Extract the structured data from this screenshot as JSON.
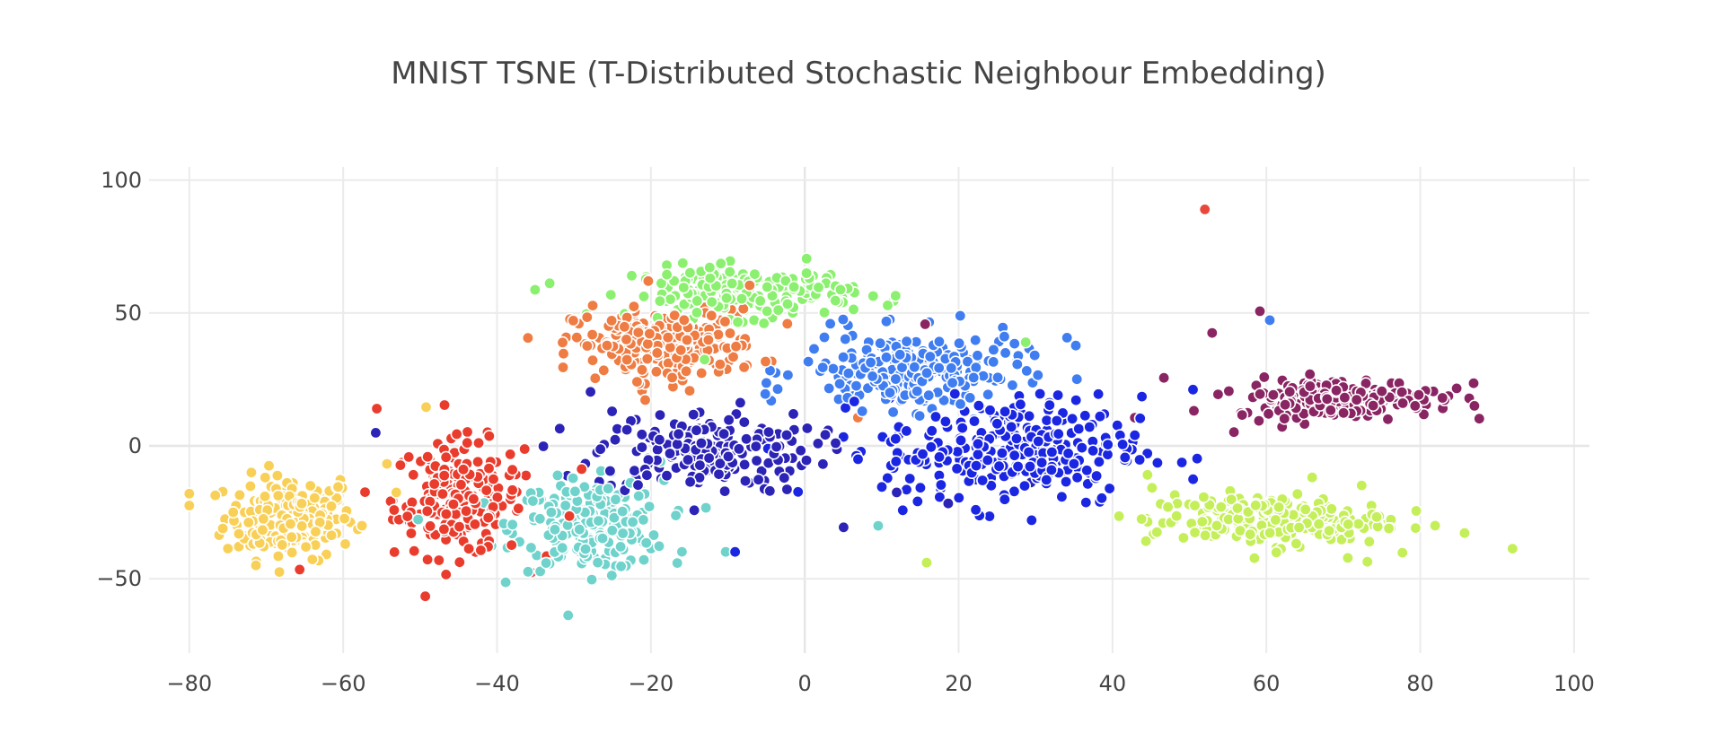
{
  "chart_data": {
    "type": "scatter",
    "title": "MNIST TSNE (T-Distributed Stochastic Neighbour Embedding)",
    "xlabel": "",
    "ylabel": "",
    "xlim": [
      -85,
      102
    ],
    "ylim": [
      -78,
      105
    ],
    "x_ticks": [
      -80,
      -60,
      -40,
      -20,
      0,
      20,
      40,
      60,
      80,
      100
    ],
    "y_ticks": [
      -50,
      0,
      50,
      100
    ],
    "x_tick_labels": [
      "−80",
      "−60",
      "−40",
      "−20",
      "0",
      "20",
      "40",
      "60",
      "80",
      "100"
    ],
    "y_tick_labels": [
      "−50",
      "0",
      "50",
      "100"
    ],
    "grid": true,
    "legend": "none",
    "marker_outline": "#ffffff",
    "clusters": [
      {
        "color": "#f9d057",
        "center": [
          -67,
          -27
        ],
        "spread": [
          7,
          13
        ],
        "count": 190
      },
      {
        "color": "#ea3c2d",
        "center": [
          -45,
          -20
        ],
        "spread": [
          7,
          18
        ],
        "count": 200
      },
      {
        "color": "#6fd3cc",
        "center": [
          -28,
          -30
        ],
        "spread": [
          8,
          14
        ],
        "count": 220
      },
      {
        "color": "#2c23b7",
        "center": [
          -13,
          -2
        ],
        "spread": [
          12,
          13
        ],
        "count": 190
      },
      {
        "color": "#ee7c43",
        "center": [
          -18,
          38
        ],
        "spread": [
          10,
          11
        ],
        "count": 230
      },
      {
        "color": "#8bf06f",
        "center": [
          -8,
          58
        ],
        "spread": [
          12,
          8
        ],
        "count": 190
      },
      {
        "color": "#3f7df1",
        "center": [
          14,
          28
        ],
        "spread": [
          12,
          12
        ],
        "count": 230
      },
      {
        "color": "#1b26e3",
        "center": [
          27,
          -2
        ],
        "spread": [
          14,
          17
        ],
        "count": 280
      },
      {
        "color": "#8a2563",
        "center": [
          69,
          18
        ],
        "spread": [
          11,
          6
        ],
        "count": 210
      },
      {
        "color": "#c4ef59",
        "center": [
          60,
          -28
        ],
        "spread": [
          13,
          8
        ],
        "count": 220
      }
    ],
    "outliers": [
      {
        "x": 52,
        "y": 89,
        "color": "#e8483a"
      }
    ]
  }
}
